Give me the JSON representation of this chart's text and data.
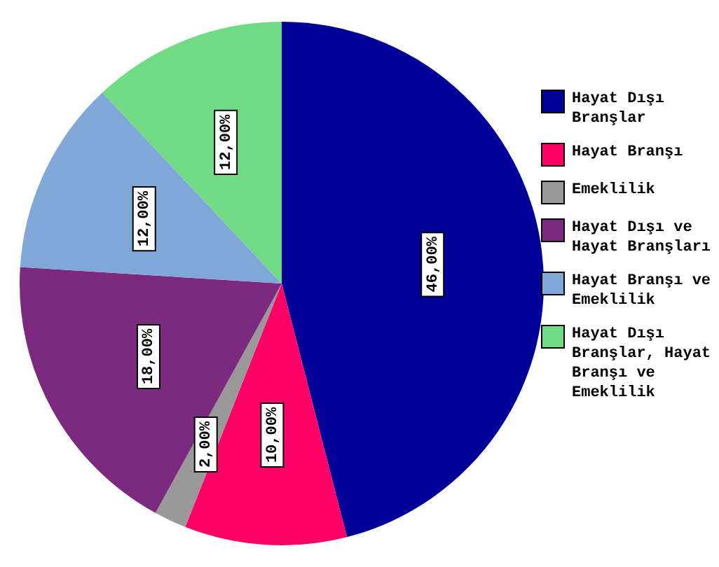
{
  "chart_data": {
    "type": "pie",
    "categories": [
      "Hayat Dışı Branşlar",
      "Hayat Branşı",
      "Emeklilik",
      "Hayat Dışı ve Hayat Branşları",
      "Hayat Branşı ve Emeklilik",
      "Hayat Dışı Branşlar, Hayat Branşı ve Emeklilik"
    ],
    "values": [
      46,
      10,
      2,
      18,
      12,
      12
    ],
    "colors": [
      "#000099",
      "#ff0066",
      "#999999",
      "#7b2a7f",
      "#7fa8d8",
      "#70db84"
    ],
    "value_labels": [
      "46,00%",
      "10,00%",
      "2,00%",
      "18,00%",
      "12,00%",
      "12,00%"
    ],
    "legend": "right"
  }
}
